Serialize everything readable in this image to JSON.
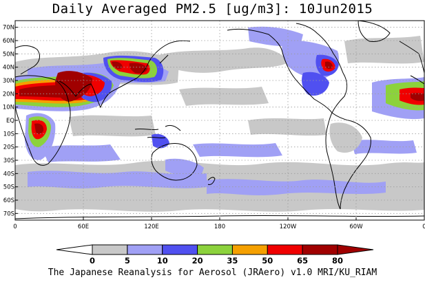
{
  "title": "Daily Averaged PM2.5 [ug/m3]: 10Jun2015",
  "credit": "The Japanese Reanalysis for Aerosol (JRAero) v1.0 MRI/KU_RIAM",
  "map": {
    "lon_range": [
      0,
      360
    ],
    "lat_range": [
      -75,
      75
    ],
    "grid": "dotted",
    "lat_ticks": [
      "70N",
      "60N",
      "50N",
      "40N",
      "30N",
      "20N",
      "10N",
      "EQ",
      "10S",
      "20S",
      "30S",
      "40S",
      "50S",
      "60S",
      "70S"
    ],
    "lat_values": [
      70,
      60,
      50,
      40,
      30,
      20,
      10,
      0,
      -10,
      -20,
      -30,
      -40,
      -50,
      -60,
      -70
    ],
    "lon_ticks": [
      "0",
      "60E",
      "120E",
      "180",
      "120W",
      "60W",
      "0"
    ],
    "lon_values": [
      0,
      60,
      120,
      180,
      240,
      300,
      360
    ]
  },
  "colorbar": {
    "levels": [
      "0",
      "5",
      "10",
      "20",
      "35",
      "50",
      "65",
      "80"
    ],
    "colors": [
      "#ffffff",
      "#c8c8c8",
      "#a0a0f5",
      "#5050f0",
      "#8cd23c",
      "#f5a000",
      "#f00000",
      "#a00000"
    ]
  },
  "colors": {
    "land_outline": "#000000",
    "background": "#ffffff"
  }
}
